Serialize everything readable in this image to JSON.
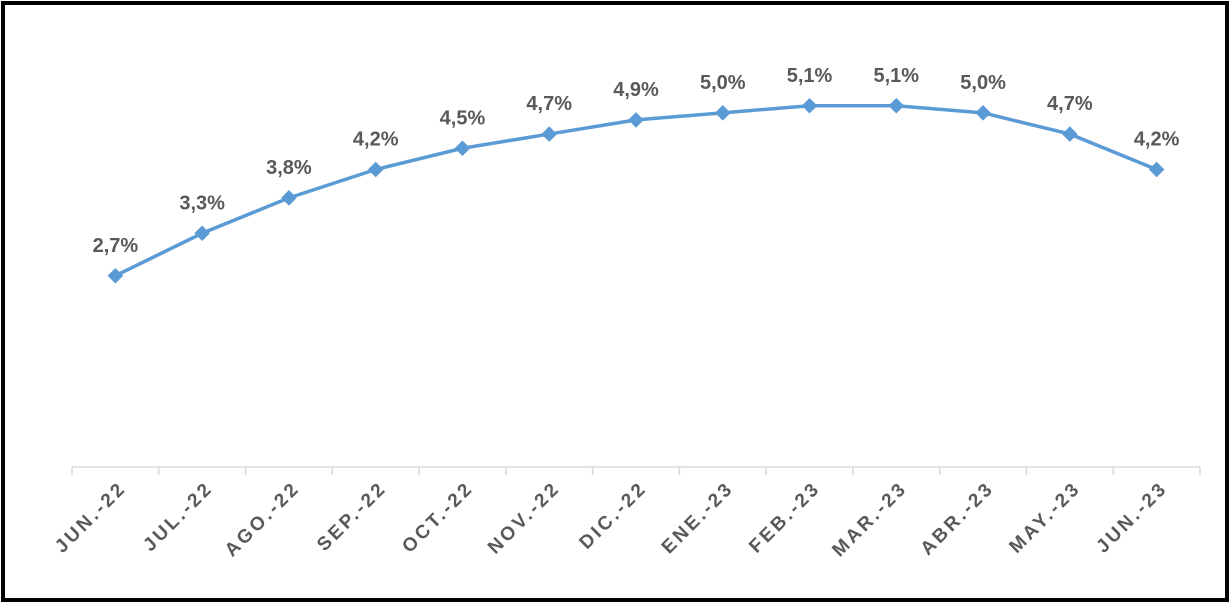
{
  "chart_data": {
    "type": "line",
    "categories": [
      "JUN.-22",
      "JUL.-22",
      "AGO.-22",
      "SEP.-22",
      "OCT.-22",
      "NOV.-22",
      "DIC.-22",
      "ENE.-23",
      "FEB.-23",
      "MAR.-23",
      "ABR.-23",
      "MAY.-23",
      "JUN.-23"
    ],
    "values": [
      2.7,
      3.3,
      3.8,
      4.2,
      4.5,
      4.7,
      4.9,
      5.0,
      5.1,
      5.1,
      5.0,
      4.7,
      4.2
    ],
    "value_labels": [
      "2,7%",
      "3,3%",
      "3,8%",
      "4,2%",
      "4,5%",
      "4,7%",
      "4,9%",
      "5,0%",
      "5,1%",
      "5,1%",
      "5,0%",
      "4,7%",
      "4,2%"
    ],
    "color": "#5b9bd5",
    "ylim": [
      0,
      6
    ]
  }
}
